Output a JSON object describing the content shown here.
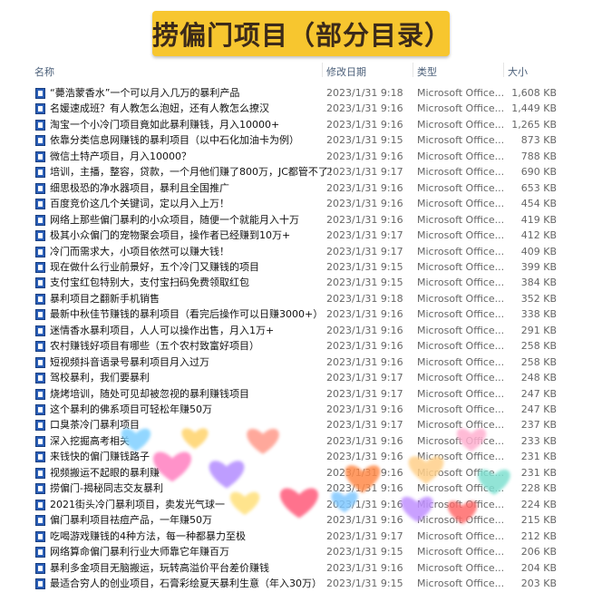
{
  "header": {
    "title": "捞偏门项目（部分目录）"
  },
  "table": {
    "columns": [
      "名称",
      "修改日期",
      "类型",
      "大小"
    ],
    "rows": [
      [
        "“薨浩蒙香水”一个可以月入几万的暴利产品",
        "2023/1/31 9:18",
        "Microsoft Office...",
        "1,608 KB"
      ],
      [
        "名媛速成班？有人教怎么泡妞，还有人教怎么撩汉",
        "2023/1/31 9:16",
        "Microsoft Office...",
        "1,449 KB"
      ],
      [
        "淘宝一个小冷门项目竟如此暴利赚钱，月入10000+",
        "2023/1/31 9:16",
        "Microsoft Office...",
        "1,265 KB"
      ],
      [
        "依靠分类信息网赚钱的暴利项目（以中石化加油卡为例）",
        "2023/1/31 9:15",
        "Microsoft Office...",
        "873 KB"
      ],
      [
        "微信土特产项目，月入10000？",
        "2023/1/31 9:16",
        "Microsoft Office...",
        "788 KB"
      ],
      [
        "培训，主播，整容，贷款，一个月他们赚了800万，JC都管不了！",
        "2023/1/31 9:17",
        "Microsoft Office...",
        "690 KB"
      ],
      [
        "细思极恐的净水器项目，暴利且全国推广",
        "2023/1/31 9:16",
        "Microsoft Office...",
        "653 KB"
      ],
      [
        "百度竞价这几个关键词，定以月入上万！",
        "2023/1/31 9:16",
        "Microsoft Office...",
        "454 KB"
      ],
      [
        "网络上那些偏门暴利的小众项目，随便一个就能月入十万",
        "2023/1/31 9:16",
        "Microsoft Office...",
        "419 KB"
      ],
      [
        "极其小众偏门的宠物聚会项目，操作者已经赚到10万+",
        "2023/1/31 9:17",
        "Microsoft Office...",
        "412 KB"
      ],
      [
        "冷门而需求大，小项目依然可以赚大钱！",
        "2023/1/31 9:17",
        "Microsoft Office...",
        "409 KB"
      ],
      [
        "现在做什么行业前景好，五个冷门又赚钱的项目",
        "2023/1/31 9:15",
        "Microsoft Office...",
        "399 KB"
      ],
      [
        "支付宝红包特别大，支付宝扫码免费领取红包",
        "2023/1/31 9:15",
        "Microsoft Office...",
        "384 KB"
      ],
      [
        "暴利项目之翻新手机销售",
        "2023/1/31 9:18",
        "Microsoft Office...",
        "352 KB"
      ],
      [
        "最新中秋佳节赚钱的暴利项目（看完后操作可以日赚3000+）",
        "2023/1/31 9:16",
        "Microsoft Office...",
        "338 KB"
      ],
      [
        "迷情香水暴利项目，人人可以操作出售，月入1万+",
        "2023/1/31 9:16",
        "Microsoft Office...",
        "291 KB"
      ],
      [
        "农村赚钱好项目有哪些（五个农村致富好项目）",
        "2023/1/31 9:16",
        "Microsoft Office...",
        "258 KB"
      ],
      [
        "短视频抖音语录号暴利项目月入过万",
        "2023/1/31 9:16",
        "Microsoft Office...",
        "258 KB"
      ],
      [
        "驾校暴利，我们要暴利",
        "2023/1/31 9:17",
        "Microsoft Office...",
        "248 KB"
      ],
      [
        "烧烤培训，随处可见却被忽视的暴利赚钱项目",
        "2023/1/31 9:17",
        "Microsoft Office...",
        "247 KB"
      ],
      [
        "这个暴利的佛系项目可轻松年赚50万",
        "2023/1/31 9:16",
        "Microsoft Office...",
        "247 KB"
      ],
      [
        "口臭茶冷门暴利项目",
        "2023/1/31 9:17",
        "Microsoft Office...",
        "237 KB"
      ],
      [
        "深入挖掘高考相关",
        "2023/1/31 9:16",
        "Microsoft Office...",
        "233 KB"
      ],
      [
        "来钱快的偏门赚钱路子",
        "2023/1/31 9:16",
        "Microsoft Office...",
        "231 KB"
      ],
      [
        "视频搬运不起眼的暴利赚",
        "2023/1/31 9:16",
        "Microsoft Office...",
        "231 KB"
      ],
      [
        "捞偏门-揭秘同志交友暴利",
        "2023/1/31 9:16",
        "Microsoft Office...",
        "228 KB"
      ],
      [
        "2021街头冷门暴利项目，卖发光气球一",
        "2023/1/31 9:16",
        "Microsoft Office...",
        "224 KB"
      ],
      [
        "偏门暴利项目祛痘产品，一年赚50万",
        "2023/1/31 9:16",
        "Microsoft Office...",
        "215 KB"
      ],
      [
        "吃喝游戏赚钱的4种方法，每一种都暴力至极",
        "2023/1/31 9:17",
        "Microsoft Office...",
        "212 KB"
      ],
      [
        "网络算命偏门暴利行业大师靠它年赚百万",
        "2023/1/31 9:15",
        "Microsoft Office...",
        "206 KB"
      ],
      [
        "暴利多金项目无脑搬运，玩转高溢价平台差价赚钱",
        "2023/1/31 9:16",
        "Microsoft Office...",
        "204 KB"
      ],
      [
        "最适合穷人的创业项目，石膏彩绘夏天暴利生意（年入30万）",
        "2023/1/31 9:15",
        "Microsoft Office...",
        "203 KB"
      ]
    ]
  }
}
